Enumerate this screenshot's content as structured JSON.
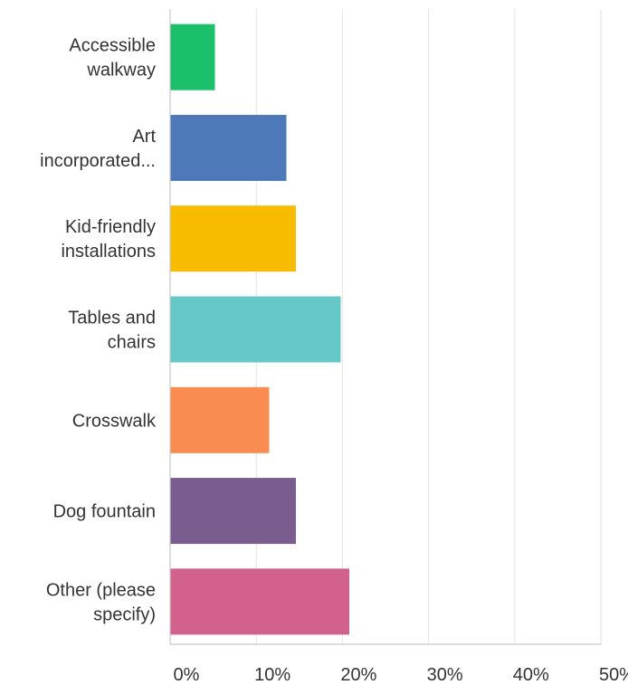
{
  "chart_data": {
    "type": "bar",
    "orientation": "horizontal",
    "categories": [
      [
        "Accessible",
        "walkway"
      ],
      [
        "Art",
        "incorporated..."
      ],
      [
        "Kid-friendly",
        "installations"
      ],
      [
        "Tables and",
        "chairs"
      ],
      [
        "Crosswalk"
      ],
      [
        "Dog fountain"
      ],
      [
        "Other (please",
        "specify)"
      ]
    ],
    "values": [
      5.2,
      13.5,
      14.6,
      19.8,
      11.5,
      14.6,
      20.8
    ],
    "colors": [
      "#1cc06b",
      "#4e79b8",
      "#f7bc00",
      "#66c7c9",
      "#f98d51",
      "#7b5c8f",
      "#d2618e"
    ],
    "x_ticks": [
      "0%",
      "10%",
      "20%",
      "30%",
      "40%",
      "50%"
    ],
    "xlim": [
      0,
      50
    ],
    "grid": true,
    "legend": "none"
  }
}
